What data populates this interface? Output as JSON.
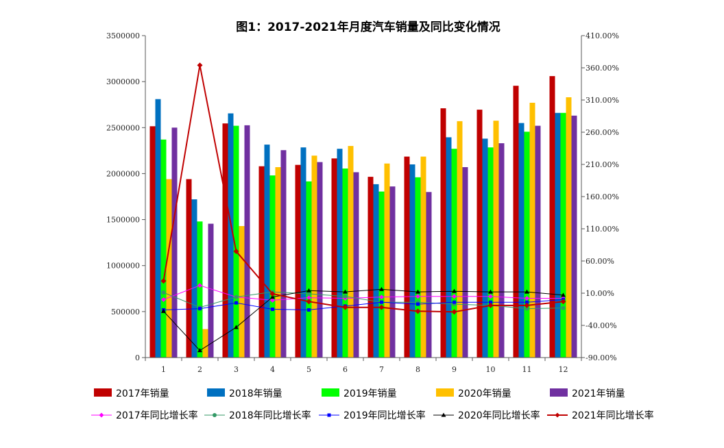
{
  "chart_data": {
    "type": "bar",
    "title": "图1：2017-2021年月度汽车销量及同比变化情况",
    "categories": [
      "1",
      "2",
      "3",
      "4",
      "5",
      "6",
      "7",
      "8",
      "9",
      "10",
      "11",
      "12"
    ],
    "y_left": {
      "min": 0,
      "max": 3500000,
      "step": 500000,
      "tick_labels": [
        "0",
        "500000",
        "1000000",
        "1500000",
        "2000000",
        "2500000",
        "3000000",
        "3500000"
      ]
    },
    "y_right": {
      "min": -90,
      "max": 410,
      "step": 50,
      "tick_labels": [
        "-90.00%",
        "-40.00%",
        "10.00%",
        "60.00%",
        "110.00%",
        "160.00%",
        "210.00%",
        "260.00%",
        "310.00%",
        "360.00%",
        "410.00%"
      ]
    },
    "bar_series": [
      {
        "name": "2017年销量",
        "color": "#c00000",
        "values": [
          2515000,
          1940000,
          2545000,
          2080000,
          2095000,
          2165000,
          1965000,
          2185000,
          2710000,
          2695000,
          2955000,
          3060000
        ]
      },
      {
        "name": "2018年销量",
        "color": "#0070c0",
        "values": [
          2810000,
          1720000,
          2655000,
          2315000,
          2285000,
          2270000,
          1885000,
          2100000,
          2395000,
          2380000,
          2550000,
          2660000
        ]
      },
      {
        "name": "2019年销量",
        "color": "#00ff00",
        "values": [
          2370000,
          1480000,
          2520000,
          1980000,
          1915000,
          2055000,
          1805000,
          1960000,
          2270000,
          2285000,
          2455000,
          2660000
        ]
      },
      {
        "name": "2020年销量",
        "color": "#ffc000",
        "values": [
          1940000,
          310000,
          1430000,
          2070000,
          2195000,
          2300000,
          2110000,
          2185000,
          2570000,
          2575000,
          2770000,
          2830000
        ]
      },
      {
        "name": "2021年销量",
        "color": "#7030a0",
        "values": [
          2500000,
          1455000,
          2525000,
          2255000,
          2125000,
          2015000,
          1860000,
          1800000,
          2070000,
          2330000,
          2520000,
          2630000
        ]
      }
    ],
    "line_series": [
      {
        "name": "2017年同比增长率",
        "color": "#ff00ff",
        "marker": "diamond",
        "values": [
          0,
          22,
          4,
          -1,
          3,
          2,
          4,
          5,
          5,
          5,
          2,
          2
        ]
      },
      {
        "name": "2018年同比增长率",
        "color": "#339966",
        "marker": "circle",
        "values": [
          11,
          -12,
          4,
          12,
          9,
          5,
          -4,
          -4,
          -7,
          -9,
          -14,
          -13
        ]
      },
      {
        "name": "2019年同比增长率",
        "color": "#0000ff",
        "marker": "square",
        "values": [
          -16,
          -14,
          -5,
          -15,
          -16,
          -10,
          -4,
          -7,
          -4,
          -4,
          -4,
          0
        ]
      },
      {
        "name": "2020年同比增长率",
        "color": "#000000",
        "marker": "triangle",
        "values": [
          -18,
          -79,
          -43,
          4,
          14,
          12,
          16,
          12,
          13,
          12,
          12,
          7
        ]
      },
      {
        "name": "2021年同比增长率",
        "color": "#c00000",
        "marker": "diamond",
        "values": [
          29,
          364,
          75,
          9,
          -3,
          -12,
          -12,
          -18,
          -19,
          -9,
          -9,
          -3
        ]
      }
    ]
  }
}
